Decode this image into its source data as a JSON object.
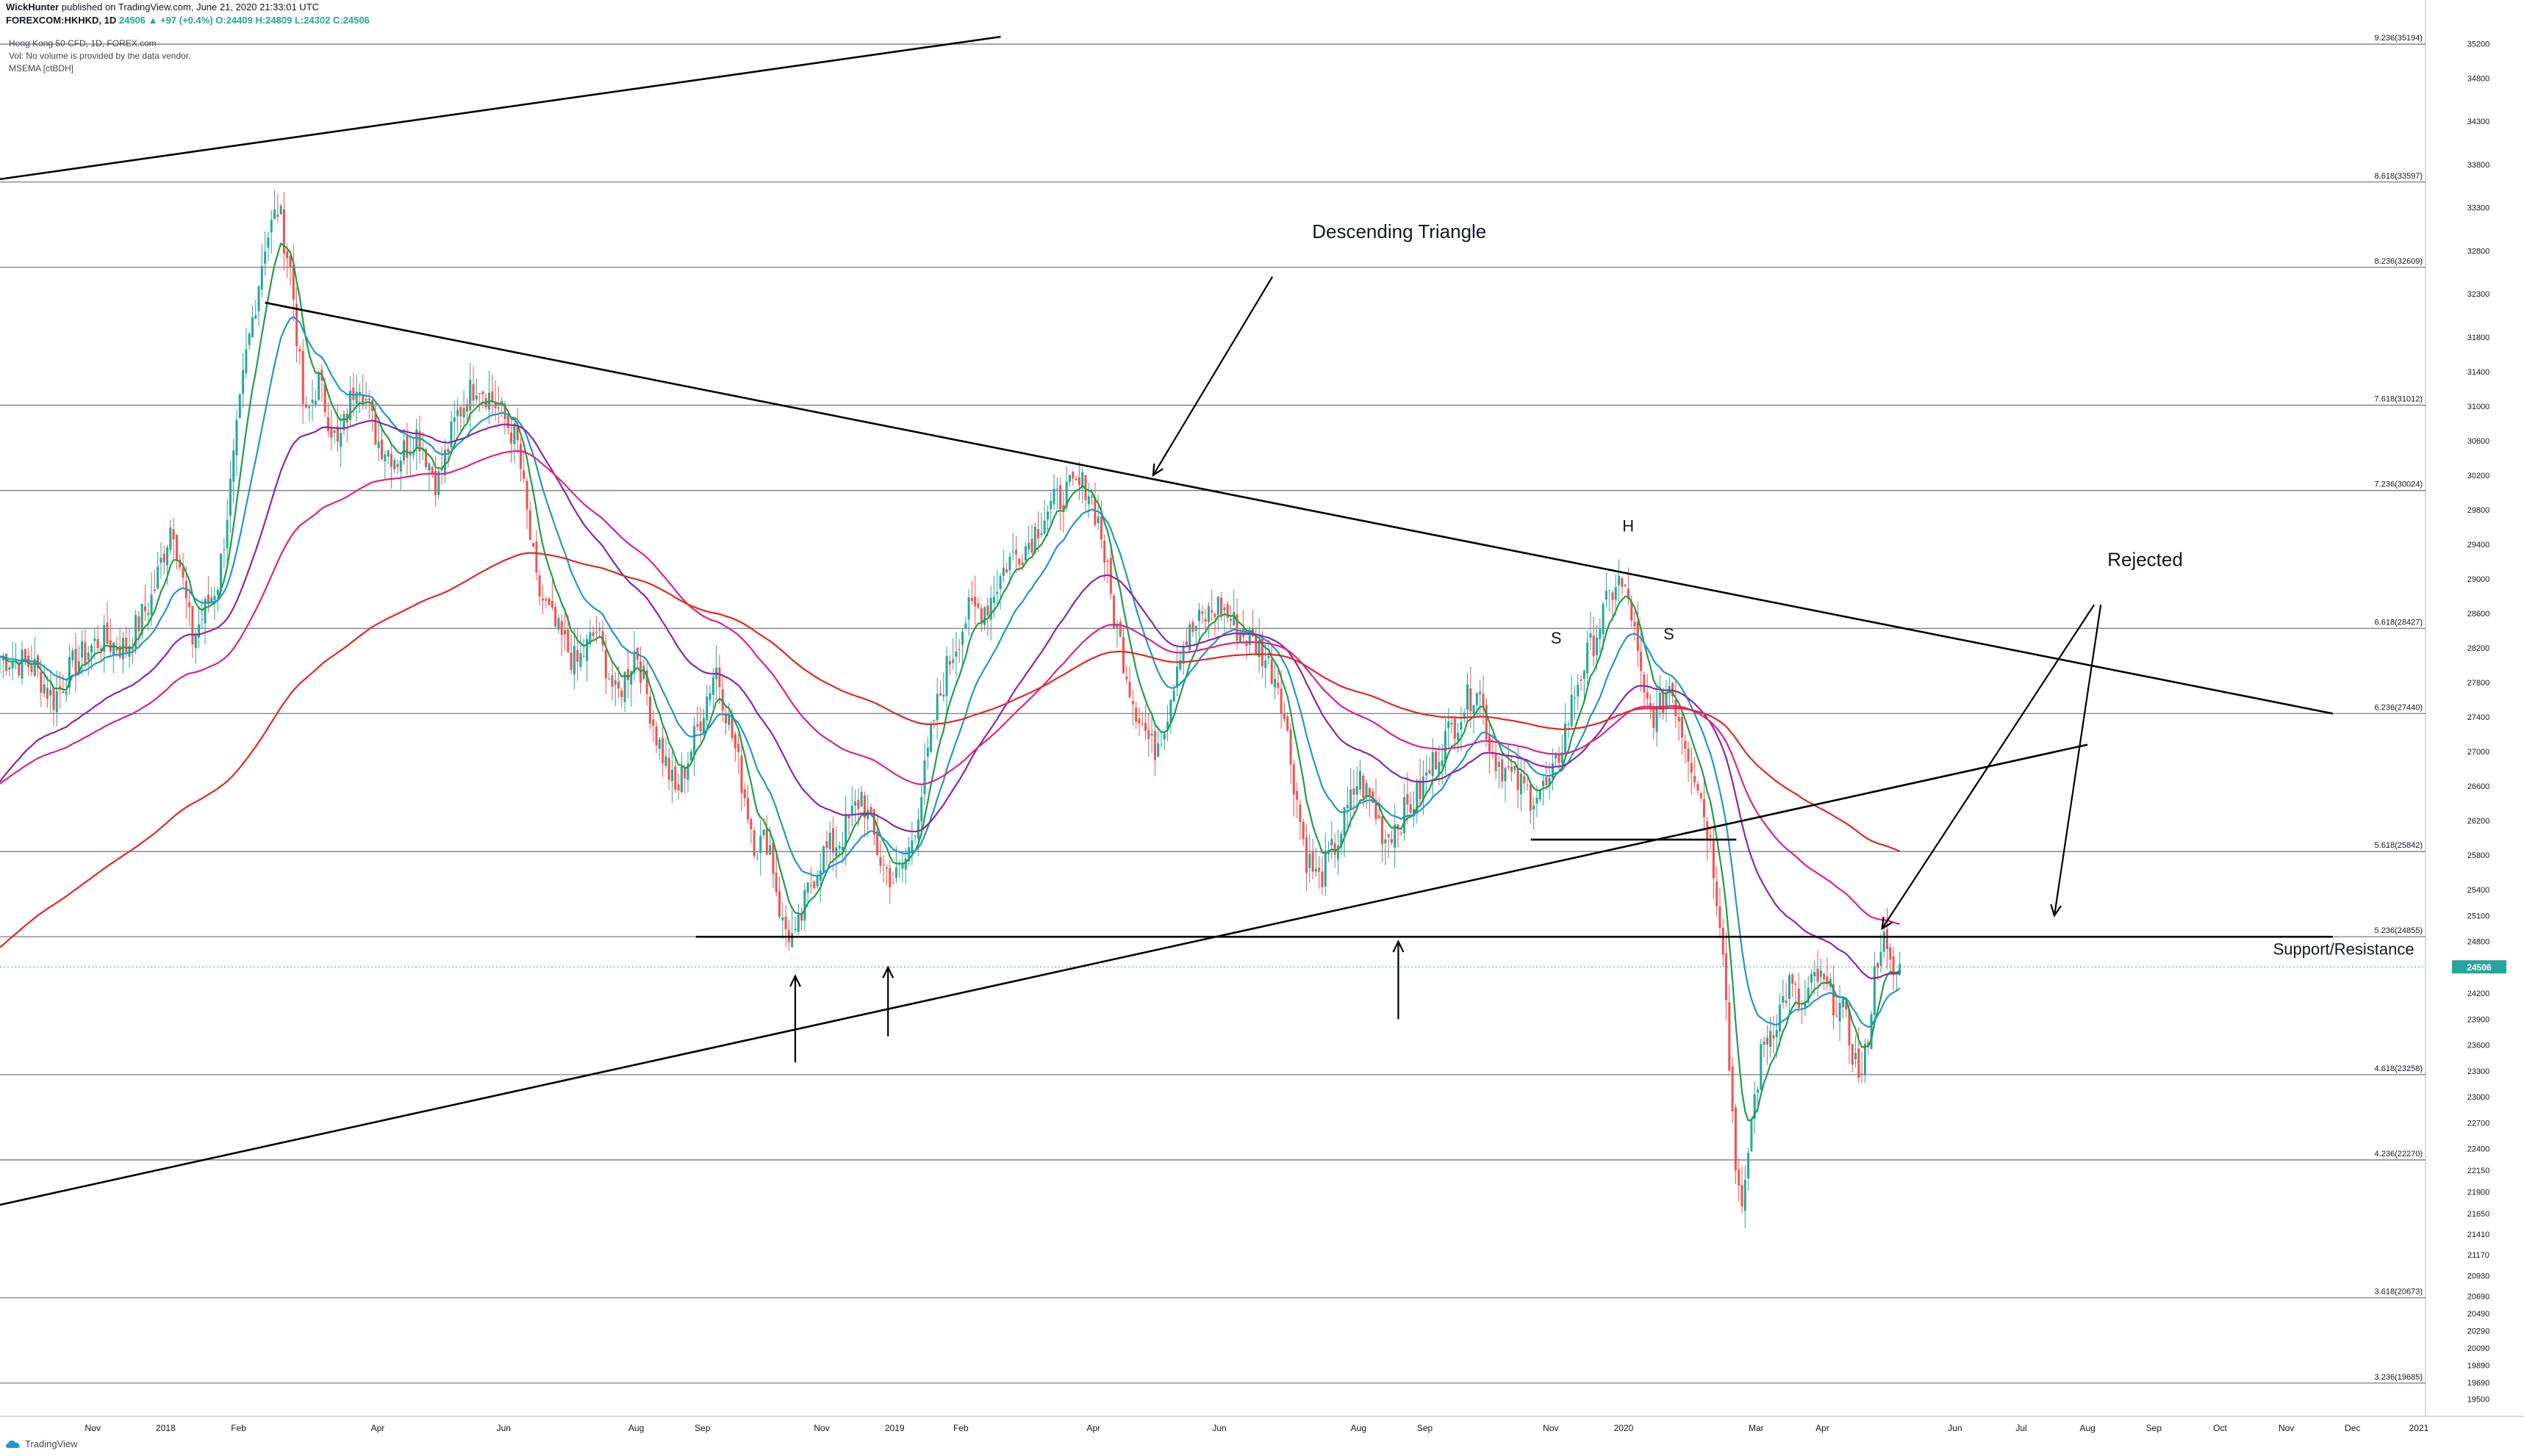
{
  "header": {
    "author": "WickHunter",
    "published": "published on TradingView.com, June 21, 2020 21:33:01 UTC",
    "symbol": "FOREXCOM:HKHKD, 1D",
    "ohlc_summary": "24506 ▲ +97 (+0.4%) O:24409 H:24809 L:24302 C:24506"
  },
  "legend": [
    "Hong Kong 50 CFD, 1D, FOREX.com",
    "Vol: No volume is provided by the data vendor.",
    "MSEMA [ctBDH]"
  ],
  "branding": {
    "name": "TradingView"
  },
  "chart_data": {
    "type": "candlestick",
    "price_axis": {
      "ticks": [
        35200,
        34800,
        34300,
        33800,
        33300,
        32800,
        32300,
        31800,
        31400,
        31000,
        30600,
        30200,
        29800,
        29400,
        29000,
        28600,
        28200,
        27800,
        27400,
        27000,
        26600,
        26200,
        25800,
        25400,
        25100,
        24800,
        24200,
        23900,
        23600,
        23300,
        23000,
        22700,
        22400,
        22150,
        21900,
        21650,
        21410,
        21170,
        20930,
        20690,
        20490,
        20290,
        20090,
        19890,
        19690,
        19500
      ],
      "range": [
        19300,
        35450
      ],
      "current_price": 24506,
      "current_price_label": "24506"
    },
    "time_axis": {
      "labels": [
        "Nov",
        "2018",
        "Feb",
        "Apr",
        "Jun",
        "Aug",
        "Sep",
        "Nov",
        "2019",
        "Feb",
        "Apr",
        "Jun",
        "Aug",
        "Sep",
        "Nov",
        "2020",
        "Mar",
        "Apr",
        "Jun",
        "Jul",
        "Aug",
        "Sep",
        "Oct",
        "Nov",
        "Dec",
        "2021"
      ],
      "label_months": [
        10.9,
        12.0,
        13.1,
        15.2,
        17.1,
        19.1,
        20.1,
        21.9,
        23.0,
        24.0,
        26.0,
        27.9,
        30.0,
        31.0,
        32.9,
        34.0,
        36.0,
        37.0,
        39.0,
        40.0,
        41.0,
        42.0,
        43.0,
        44.0,
        45.0,
        46.0
      ]
    },
    "fib_levels": [
      {
        "label": "9.236(35194)",
        "value": 35194
      },
      {
        "label": "8.618(33597)",
        "value": 33597
      },
      {
        "label": "8.236(32609)",
        "value": 32609
      },
      {
        "label": "7.618(31012)",
        "value": 31012
      },
      {
        "label": "7.236(30024)",
        "value": 30024
      },
      {
        "label": "6.618(28427)",
        "value": 28427
      },
      {
        "label": "6.236(27440)",
        "value": 27440
      },
      {
        "label": "5.618(25842)",
        "value": 25842
      },
      {
        "label": "5.236(24855)",
        "value": 24855
      },
      {
        "label": "4.618(23258)",
        "value": 23258
      },
      {
        "label": "4.236(22270)",
        "value": 22270
      },
      {
        "label": "3.618(20673)",
        "value": 20673
      },
      {
        "label": "3.236(19685)",
        "value": 19685
      }
    ],
    "price_anchors": [
      [
        9.5,
        28100
      ],
      [
        10.0,
        28000
      ],
      [
        10.3,
        27600
      ],
      [
        10.6,
        28000
      ],
      [
        11.0,
        28300
      ],
      [
        11.4,
        28200
      ],
      [
        11.8,
        28800
      ],
      [
        12.1,
        29700
      ],
      [
        12.4,
        28300
      ],
      [
        12.8,
        29000
      ],
      [
        13.0,
        30200
      ],
      [
        13.2,
        31500
      ],
      [
        13.5,
        32900
      ],
      [
        13.7,
        33300
      ],
      [
        13.9,
        32500
      ],
      [
        14.1,
        30800
      ],
      [
        14.3,
        31300
      ],
      [
        14.6,
        30500
      ],
      [
        14.9,
        31400
      ],
      [
        15.2,
        30600
      ],
      [
        15.5,
        30400
      ],
      [
        15.8,
        30700
      ],
      [
        16.1,
        30100
      ],
      [
        16.4,
        30900
      ],
      [
        16.7,
        31300
      ],
      [
        17.0,
        31000
      ],
      [
        17.3,
        30600
      ],
      [
        17.6,
        28900
      ],
      [
        17.9,
        28400
      ],
      [
        18.2,
        28000
      ],
      [
        18.5,
        28400
      ],
      [
        18.8,
        27600
      ],
      [
        19.1,
        28200
      ],
      [
        19.4,
        27200
      ],
      [
        19.7,
        26500
      ],
      [
        20.0,
        27200
      ],
      [
        20.3,
        28000
      ],
      [
        20.6,
        27000
      ],
      [
        20.9,
        25900
      ],
      [
        21.1,
        26000
      ],
      [
        21.3,
        25000
      ],
      [
        21.5,
        24800
      ],
      [
        21.7,
        25400
      ],
      [
        21.9,
        25800
      ],
      [
        22.2,
        26000
      ],
      [
        22.5,
        26500
      ],
      [
        22.8,
        25700
      ],
      [
        23.0,
        25500
      ],
      [
        23.2,
        25800
      ],
      [
        23.4,
        26500
      ],
      [
        23.6,
        27400
      ],
      [
        23.8,
        28000
      ],
      [
        24.1,
        28600
      ],
      [
        24.4,
        28700
      ],
      [
        24.7,
        29200
      ],
      [
        25.0,
        29400
      ],
      [
        25.3,
        29800
      ],
      [
        25.6,
        30000
      ],
      [
        25.9,
        30100
      ],
      [
        26.1,
        29600
      ],
      [
        26.3,
        28600
      ],
      [
        26.6,
        27600
      ],
      [
        26.9,
        27000
      ],
      [
        27.1,
        27400
      ],
      [
        27.3,
        28200
      ],
      [
        27.6,
        28500
      ],
      [
        27.9,
        28700
      ],
      [
        28.2,
        28400
      ],
      [
        28.5,
        28200
      ],
      [
        28.8,
        27800
      ],
      [
        29.0,
        26800
      ],
      [
        29.2,
        25800
      ],
      [
        29.4,
        25500
      ],
      [
        29.7,
        26000
      ],
      [
        30.0,
        26700
      ],
      [
        30.2,
        26400
      ],
      [
        30.4,
        26000
      ],
      [
        30.6,
        26200
      ],
      [
        30.9,
        26500
      ],
      [
        31.2,
        27000
      ],
      [
        31.5,
        27400
      ],
      [
        31.8,
        27800
      ],
      [
        32.0,
        27000
      ],
      [
        32.3,
        26700
      ],
      [
        32.6,
        26500
      ],
      [
        32.9,
        26600
      ],
      [
        33.1,
        27200
      ],
      [
        33.3,
        27800
      ],
      [
        33.6,
        28400
      ],
      [
        33.9,
        29000
      ],
      [
        34.1,
        28700
      ],
      [
        34.3,
        27600
      ],
      [
        34.5,
        27400
      ],
      [
        34.7,
        27800
      ],
      [
        34.9,
        27200
      ],
      [
        35.1,
        26700
      ],
      [
        35.3,
        26000
      ],
      [
        35.5,
        24800
      ],
      [
        35.6,
        23300
      ],
      [
        35.7,
        22200
      ],
      [
        35.8,
        21500
      ],
      [
        35.9,
        22600
      ],
      [
        36.1,
        23600
      ],
      [
        36.3,
        23900
      ],
      [
        36.5,
        24300
      ],
      [
        36.7,
        24000
      ],
      [
        36.9,
        24400
      ],
      [
        37.1,
        24200
      ],
      [
        37.3,
        24000
      ],
      [
        37.5,
        23400
      ],
      [
        37.6,
        23200
      ],
      [
        37.7,
        23800
      ],
      [
        37.8,
        24500
      ],
      [
        37.9,
        24900
      ],
      [
        38.0,
        24500
      ],
      [
        38.1,
        24400
      ],
      [
        38.2,
        24506
      ]
    ],
    "series": [
      {
        "name": "EMA fast",
        "color": "#1f9e48",
        "period": 8
      },
      {
        "name": "EMA mid",
        "color": "#2196c9",
        "period": 21
      },
      {
        "name": "EMA slow",
        "color": "#8e24aa",
        "period": 55
      },
      {
        "name": "EMA long",
        "color": "#e0218a",
        "period": 100
      },
      {
        "name": "EMA 200",
        "color": "#e5271f",
        "period": 200
      }
    ],
    "annotations": {
      "descending_triangle": "Descending Triangle",
      "rejected": "Rejected",
      "support_resistance": "Support/Resistance",
      "shoulder_left": "S",
      "head": "H",
      "shoulder_right": "S"
    },
    "trendlines": [
      {
        "name": "upper-top-line",
        "from": [
          9.5,
          33630
        ],
        "to": [
          24.6,
          35280
        ]
      },
      {
        "name": "triangle-top",
        "from": [
          13.5,
          32200
        ],
        "to": [
          44.7,
          27440
        ]
      },
      {
        "name": "triangle-bottom",
        "from": [
          9.5,
          21750
        ],
        "to": [
          41.0,
          27080
        ]
      },
      {
        "name": "support-line",
        "from": [
          20.0,
          24855
        ],
        "to": [
          44.7,
          24855
        ]
      },
      {
        "name": "neckline",
        "from": [
          32.6,
          25980
        ],
        "to": [
          35.7,
          25980
        ]
      }
    ]
  }
}
